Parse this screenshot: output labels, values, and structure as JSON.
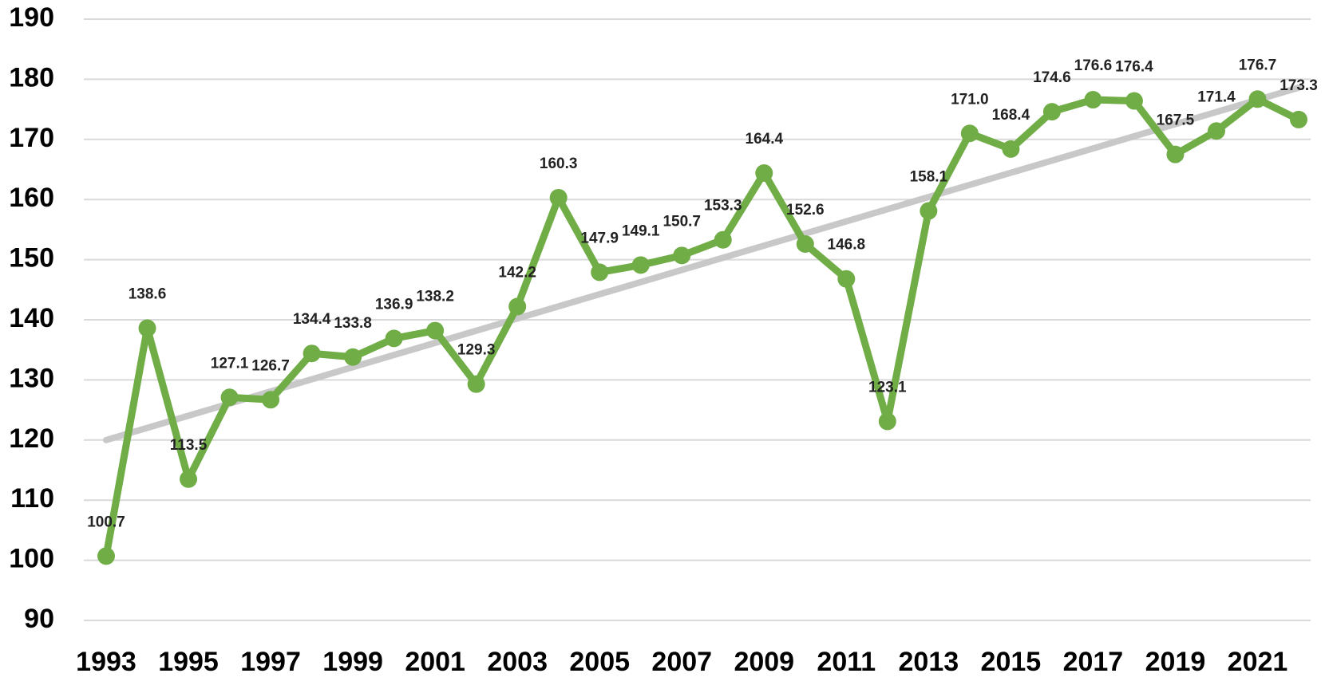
{
  "chart_data": {
    "type": "line",
    "categories": [
      "1993",
      null,
      "1995",
      null,
      "1997",
      null,
      "1999",
      null,
      "2001",
      null,
      "2003",
      null,
      "2005",
      null,
      "2007",
      null,
      "2009",
      null,
      "2011",
      null,
      "2013",
      null,
      "2015",
      null,
      "2017",
      null,
      "2019",
      null,
      "2021",
      null
    ],
    "series": [
      {
        "color": "#70ad47",
        "values": [
          100.7,
          138.6,
          113.5,
          127.1,
          126.7,
          134.4,
          133.8,
          136.9,
          138.2,
          129.3,
          142.2,
          160.3,
          147.9,
          149.1,
          150.7,
          153.3,
          164.4,
          152.6,
          146.8,
          123.1,
          158.1,
          171.0,
          168.4,
          174.6,
          176.6,
          176.4,
          167.5,
          171.4,
          176.7,
          173.3
        ],
        "value_labels": [
          "100.7",
          "138.6",
          "113.5",
          "127.1",
          "126.7",
          "134.4",
          "133.8",
          "136.9",
          "138.2",
          "129.3",
          "142.2",
          "160.3",
          "147.9",
          "149.1",
          "150.7",
          "153.3",
          "164.4",
          "152.6",
          "146.8",
          "123.1",
          "158.1",
          "171.0",
          "168.4",
          "174.6",
          "176.6",
          "176.4",
          "167.5",
          "171.4",
          "176.7",
          "173.3"
        ]
      }
    ],
    "trendline": {
      "color": "#c8c8c8",
      "values": [
        120,
        178.6
      ]
    },
    "ylim": [
      90,
      190
    ],
    "yticks": [
      90,
      100,
      110,
      120,
      130,
      140,
      150,
      160,
      170,
      180,
      190
    ],
    "grid": true
  }
}
